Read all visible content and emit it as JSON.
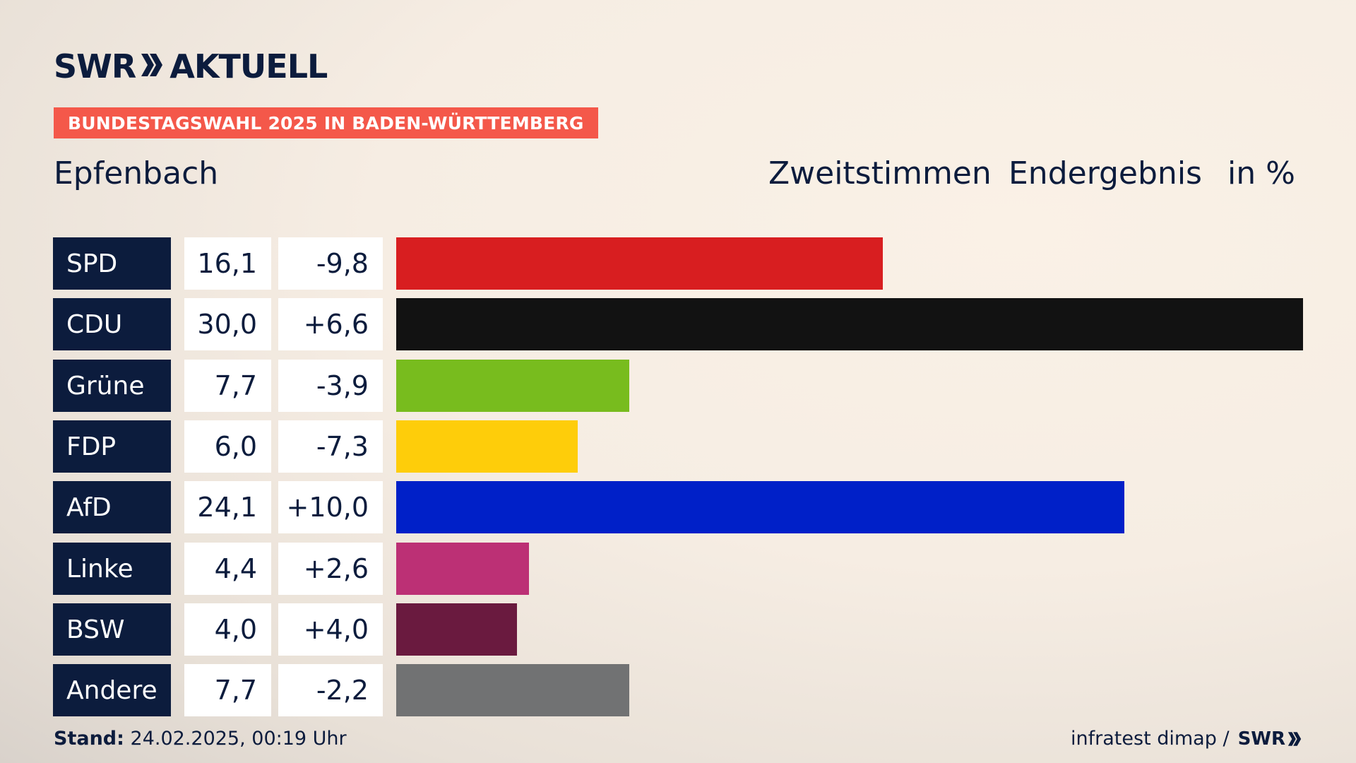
{
  "brand": {
    "logo_left": "SWR",
    "logo_right": "AKTUELL",
    "footer_logo": "SWR"
  },
  "banner": "BUNDESTAGSWAHL 2025 IN BADEN-WÜRTTEMBERG",
  "place": "Epfenbach",
  "headings": {
    "votes": "Zweitstimmen",
    "result": "Endergebnis",
    "unit": "in %"
  },
  "chart_data": {
    "type": "bar",
    "orientation": "horizontal",
    "categories": [
      "SPD",
      "CDU",
      "Grüne",
      "FDP",
      "AfD",
      "Linke",
      "BSW",
      "Andere"
    ],
    "values": [
      16.1,
      30.0,
      7.7,
      6.0,
      24.1,
      4.4,
      4.0,
      7.7
    ],
    "value_labels": [
      "16,1",
      "30,0",
      "7,7",
      "6,0",
      "24,1",
      "4,4",
      "4,0",
      "7,7"
    ],
    "changes": [
      -9.8,
      6.6,
      -3.9,
      -7.3,
      10.0,
      2.6,
      4.0,
      -2.2
    ],
    "change_labels": [
      "-9,8",
      "+6,6",
      "-3,9",
      "-7,3",
      "+10,0",
      "+2,6",
      "+4,0",
      "-2,2"
    ],
    "colors": [
      "#d81e20",
      "#121212",
      "#78bc1e",
      "#fecd0a",
      "#0020c8",
      "#bc3075",
      "#6a1a3f",
      "#717273"
    ],
    "xlim": [
      0,
      30.0
    ]
  },
  "footer": {
    "stand_label": "Stand:",
    "stand_value": "24.02.2025, 00:19 Uhr",
    "source": "infratest dimap /"
  }
}
